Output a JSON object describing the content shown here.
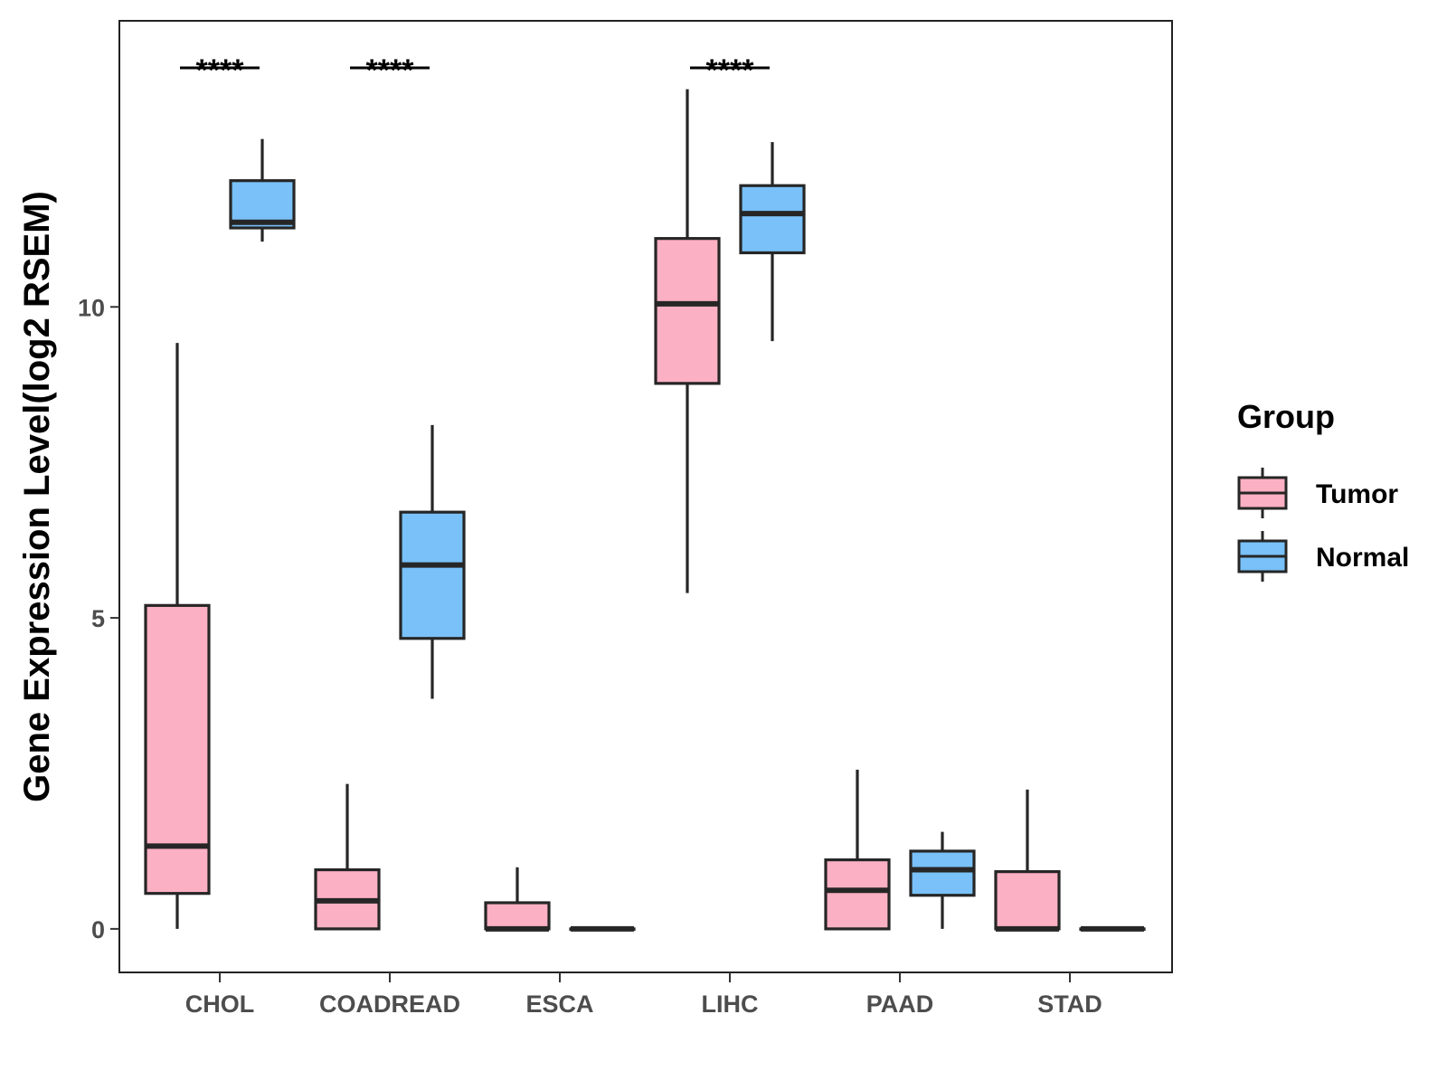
{
  "chart_data": {
    "type": "boxplot",
    "title": "",
    "xlabel": "",
    "ylabel": "Gene Expression Level(log2 RSEM)",
    "ylim": [
      -0.7,
      14.6
    ],
    "yticks": [
      0,
      5,
      10
    ],
    "categories": [
      "CHOL",
      "COADREAD",
      "ESCA",
      "LIHC",
      "PAAD",
      "STAD"
    ],
    "legend": {
      "title": "Group",
      "position": "right",
      "entries": [
        "Tumor",
        "Normal"
      ]
    },
    "colors": {
      "Tumor": "#FCB0C3",
      "Normal": "#79C1F8",
      "stroke": "#262626"
    },
    "series": [
      {
        "name": "Tumor",
        "boxes": [
          {
            "min": 0.0,
            "q1": 0.57,
            "median": 1.33,
            "q3": 5.2,
            "max": 9.42
          },
          {
            "min": 0.0,
            "q1": 0.0,
            "median": 0.45,
            "q3": 0.95,
            "max": 2.33
          },
          {
            "min": 0.0,
            "q1": 0.0,
            "median": 0.0,
            "q3": 0.42,
            "max": 0.99
          },
          {
            "min": 5.4,
            "q1": 8.77,
            "median": 10.05,
            "q3": 11.1,
            "max": 13.5
          },
          {
            "min": 0.0,
            "q1": 0.0,
            "median": 0.62,
            "q3": 1.11,
            "max": 2.56
          },
          {
            "min": 0.0,
            "q1": 0.0,
            "median": 0.0,
            "q3": 0.92,
            "max": 2.24
          }
        ]
      },
      {
        "name": "Normal",
        "boxes": [
          {
            "min": 11.05,
            "q1": 11.27,
            "median": 11.36,
            "q3": 12.03,
            "max": 12.7
          },
          {
            "min": 3.7,
            "q1": 4.67,
            "median": 5.85,
            "q3": 6.7,
            "max": 8.1
          },
          {
            "min": 0.0,
            "q1": 0.0,
            "median": 0.0,
            "q3": 0.0,
            "max": 0.0
          },
          {
            "min": 9.45,
            "q1": 10.87,
            "median": 11.5,
            "q3": 11.95,
            "max": 12.65
          },
          {
            "min": 0.0,
            "q1": 0.54,
            "median": 0.95,
            "q3": 1.25,
            "max": 1.56
          },
          {
            "min": 0.0,
            "q1": 0.0,
            "median": 0.0,
            "q3": 0.0,
            "max": 0.0
          }
        ]
      }
    ],
    "annotations": [
      {
        "category": "CHOL",
        "text": "****"
      },
      {
        "category": "COADREAD",
        "text": "****"
      },
      {
        "category": "LIHC",
        "text": "****"
      }
    ]
  }
}
